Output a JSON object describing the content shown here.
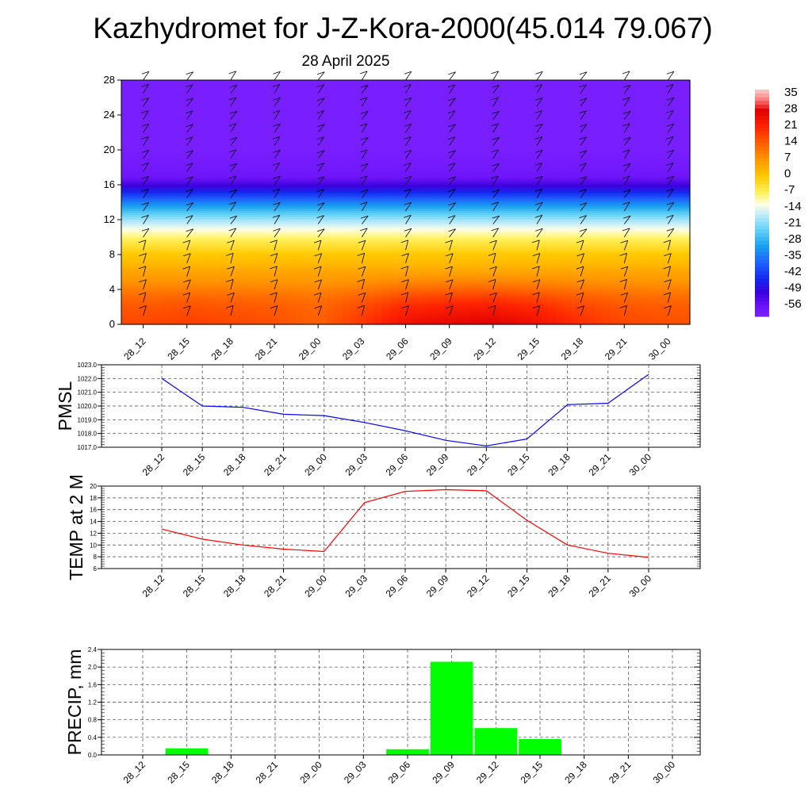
{
  "title": "Kazhydromet for J-Z-Kora-2000(45.014 79.067)",
  "subtitle": "28 April 2025",
  "x_labels": [
    "28_12",
    "28_15",
    "28_18",
    "28_21",
    "29_00",
    "29_03",
    "29_06",
    "29_09",
    "29_12",
    "29_15",
    "29_18",
    "29_21",
    "30_00"
  ],
  "chart_data": [
    {
      "type": "heatmap",
      "name": "Temperature cross-section with wind barbs",
      "x": [
        "28_12",
        "28_15",
        "28_18",
        "28_21",
        "29_00",
        "29_03",
        "29_06",
        "29_09",
        "29_12",
        "29_15",
        "29_18",
        "29_21",
        "30_00"
      ],
      "y_ticks": [
        0,
        4,
        8,
        12,
        16,
        20,
        24,
        28
      ],
      "ylim": [
        0,
        28
      ],
      "colorbar": {
        "labels": [
          "35",
          "28",
          "21",
          "14",
          "7",
          "0",
          "-7",
          "-14",
          "-21",
          "-28",
          "-35",
          "-42",
          "-49",
          "-56"
        ],
        "range": [
          -60,
          37
        ]
      },
      "profile_levels": [
        0,
        1,
        2,
        3,
        4,
        5,
        6,
        7,
        8,
        9,
        10,
        11,
        12,
        13,
        14,
        15,
        16,
        17,
        18,
        19,
        20,
        28
      ],
      "profile_temps": [
        23,
        21,
        19,
        16,
        12,
        8,
        5,
        2,
        0,
        -4,
        -8,
        -13,
        -19,
        -26,
        -34,
        -43,
        -51,
        -57,
        -58,
        -59,
        -60,
        -60
      ],
      "surface_offset": [
        -6,
        -5,
        -6,
        -7,
        -9,
        -4,
        2,
        4,
        5,
        2,
        -3,
        -6,
        -7
      ]
    },
    {
      "type": "line",
      "ylabel": "PMSL",
      "categories": [
        "28_12",
        "28_15",
        "28_18",
        "28_21",
        "29_00",
        "29_03",
        "29_06",
        "29_09",
        "29_12",
        "29_15",
        "29_18",
        "29_21",
        "30_00"
      ],
      "values": [
        1022.0,
        1020.0,
        1019.9,
        1019.4,
        1019.3,
        1018.8,
        1018.2,
        1017.5,
        1017.1,
        1017.6,
        1020.1,
        1020.2,
        1022.3
      ],
      "ylim": [
        1017.0,
        1023.0
      ],
      "y_ticks": [
        "1017.0",
        "1018.0",
        "1019.0",
        "1020.0",
        "1021.0",
        "1022.0",
        "1023.0"
      ],
      "color": "#0000ff",
      "grid": true
    },
    {
      "type": "line",
      "ylabel": "TEMP at 2 M",
      "categories": [
        "28_12",
        "28_15",
        "28_18",
        "28_21",
        "29_00",
        "29_03",
        "29_06",
        "29_09",
        "29_12",
        "29_15",
        "29_18",
        "29_21",
        "30_00"
      ],
      "values": [
        12.7,
        11.0,
        10.0,
        9.3,
        8.9,
        17.2,
        19.1,
        19.4,
        19.2,
        14.2,
        10.0,
        8.6,
        7.9
      ],
      "ylim": [
        6,
        20
      ],
      "y_ticks": [
        "6",
        "8",
        "10",
        "12",
        "14",
        "16",
        "18",
        "20"
      ],
      "color": "#ff0000",
      "grid": true
    },
    {
      "type": "bar",
      "ylabel": "PRECIP, mm",
      "categories": [
        "28_12",
        "28_15",
        "28_18",
        "28_21",
        "29_00",
        "29_03",
        "29_06",
        "29_09",
        "29_12",
        "29_15",
        "29_18",
        "29_21",
        "30_00"
      ],
      "values": [
        0,
        0.15,
        0,
        0,
        0,
        0,
        0.13,
        2.12,
        0.61,
        0.36,
        0,
        0,
        0
      ],
      "ylim": [
        0,
        2.4
      ],
      "y_ticks": [
        "0.0",
        "0.4",
        "0.8",
        "1.2",
        "1.6",
        "2.0",
        "2.4"
      ],
      "color": "#00ff00",
      "grid": true
    }
  ]
}
